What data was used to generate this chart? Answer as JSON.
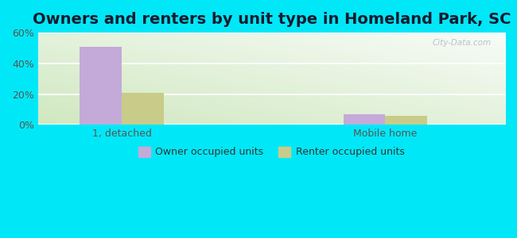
{
  "title": "Owners and renters by unit type in Homeland Park, SC",
  "categories": [
    "1, detached",
    "Mobile home"
  ],
  "owner_values": [
    51.0,
    7.0
  ],
  "renter_values": [
    21.0,
    6.0
  ],
  "owner_color": "#c4aad8",
  "renter_color": "#c8cc88",
  "ylim": [
    0,
    60
  ],
  "yticks": [
    0,
    20,
    40,
    60
  ],
  "ytick_labels": [
    "0%",
    "20%",
    "40%",
    "60%"
  ],
  "bar_width": 0.35,
  "background_outer": "#00e8f8",
  "legend_labels": [
    "Owner occupied units",
    "Renter occupied units"
  ],
  "watermark": "City-Data.com",
  "title_fontsize": 14,
  "tick_fontsize": 9,
  "legend_fontsize": 9,
  "group_positions": [
    1.0,
    3.2
  ],
  "xlim": [
    0.3,
    4.2
  ]
}
